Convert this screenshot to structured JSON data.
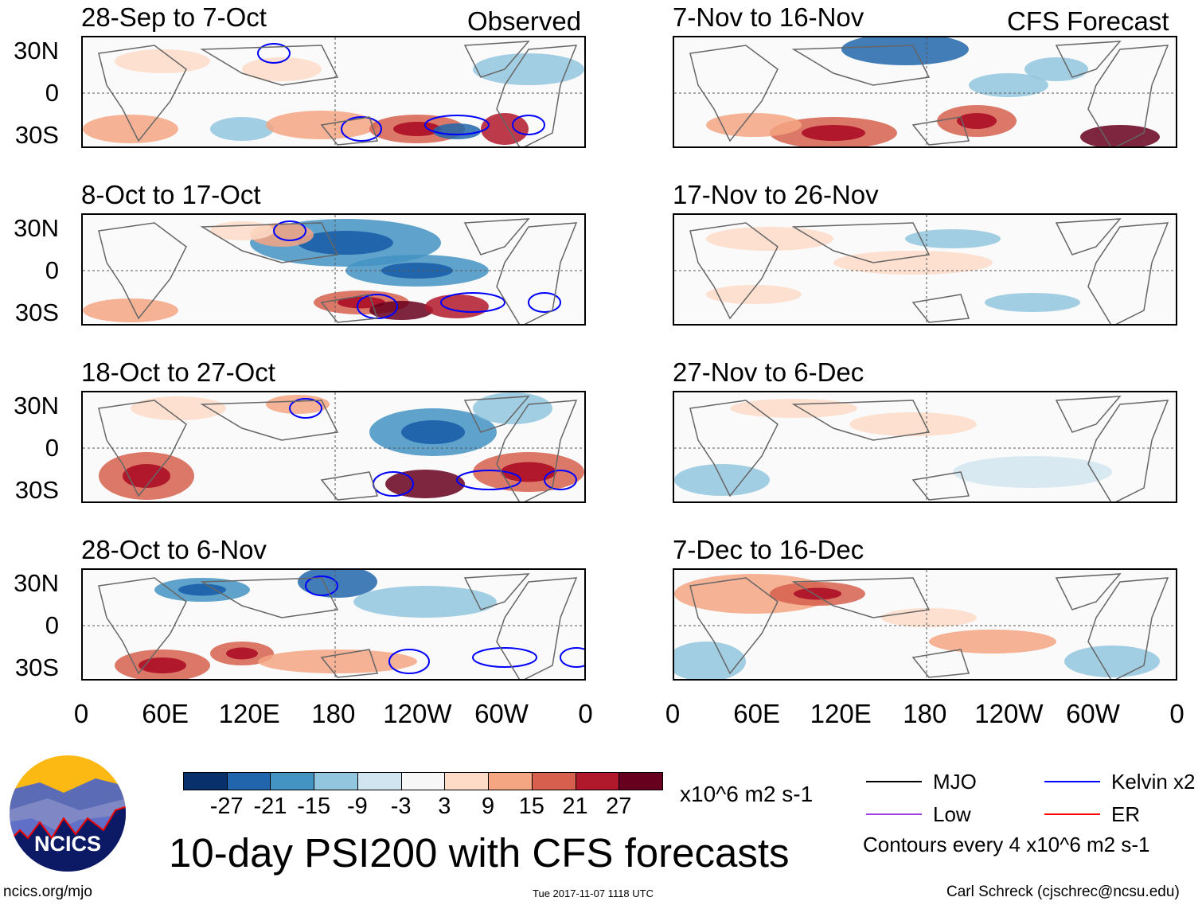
{
  "header": {
    "left_label": "Observed",
    "right_label": "CFS Forecast"
  },
  "panels": {
    "left": [
      {
        "title": "28-Sep to 7-Oct"
      },
      {
        "title": "8-Oct to 17-Oct"
      },
      {
        "title": "18-Oct to 27-Oct"
      },
      {
        "title": "28-Oct to 6-Nov"
      }
    ],
    "right": [
      {
        "title": "7-Nov to 16-Nov"
      },
      {
        "title": "17-Nov to 26-Nov"
      },
      {
        "title": "27-Nov to 6-Dec"
      },
      {
        "title": "7-Dec to 16-Dec"
      }
    ]
  },
  "axes": {
    "lat_labels": [
      "30N",
      "0",
      "30S"
    ],
    "lon_labels": [
      "0",
      "60E",
      "120E",
      "180",
      "120W",
      "60W",
      "0"
    ]
  },
  "colorbar": {
    "colors": [
      "#08306b",
      "#2166ac",
      "#4393c3",
      "#92c5de",
      "#d1e5f0",
      "#f7f7f7",
      "#fddbc7",
      "#f4a582",
      "#d6604d",
      "#b2182b",
      "#67001f"
    ],
    "ticks": [
      "-27",
      "-21",
      "-15",
      "-9",
      "-3",
      "3",
      "9",
      "15",
      "21",
      "27"
    ],
    "units": "x10^6 m2 s-1"
  },
  "legend": {
    "items": [
      {
        "label": "MJO",
        "color": "#000000"
      },
      {
        "label": "Kelvin x2",
        "color": "#0000ff"
      },
      {
        "label": "Low",
        "color": "#a040e0"
      },
      {
        "label": "ER",
        "color": "#ff0000"
      }
    ],
    "contour_note": "Contours every 4 x10^6 m2 s-1"
  },
  "title": "10-day PSI200 with CFS forecasts",
  "logo_text": "NCICS",
  "footer": {
    "url": "ncics.org/mjo",
    "timestamp": "Tue 2017-11-07 1118 UTC",
    "credit": "Carl Schreck (cjschrec@ncsu.edu)"
  }
}
